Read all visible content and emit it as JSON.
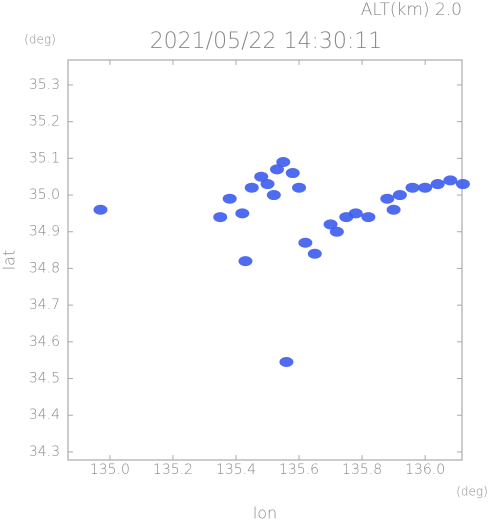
{
  "chart_data": {
    "type": "scatter",
    "title": "2021/05/22 14:30:11",
    "subtitle": "ALT(km) 2.0",
    "x_label": "lon",
    "y_label": "lat",
    "x_unit": "(deg)",
    "y_unit": "(deg)",
    "xlim": [
      134.867,
      136.117
    ],
    "ylim": [
      34.278,
      35.368
    ],
    "xticks": [
      {
        "value": 135,
        "label": "135.0"
      },
      135.2,
      135.4,
      135.6,
      135.8,
      {
        "value": 136,
        "label": "136.0"
      }
    ],
    "yticks": [
      34.3,
      34.4,
      34.5,
      34.6,
      34.7,
      34.8,
      34.9,
      {
        "value": 35,
        "label": "35.0"
      },
      35.1,
      35.2,
      35.3
    ],
    "color": "#3c5cf0",
    "x": [
      134.97,
      135.56,
      135.35,
      135.38,
      135.42,
      135.45,
      135.48,
      135.5,
      135.53,
      135.55,
      135.58,
      135.52,
      135.6,
      135.62,
      135.65,
      135.7,
      135.72,
      135.75,
      135.78,
      135.82,
      135.88,
      135.92,
      135.96,
      136.0,
      136.04,
      136.08,
      136.12,
      135.9,
      135.43
    ],
    "y": [
      34.96,
      34.545,
      34.94,
      34.99,
      34.95,
      35.02,
      35.05,
      35.03,
      35.07,
      35.09,
      35.06,
      35.0,
      35.02,
      34.87,
      34.84,
      34.92,
      34.9,
      34.94,
      34.95,
      34.94,
      34.99,
      35.0,
      35.02,
      35.02,
      35.03,
      35.04,
      35.03,
      34.96,
      34.82
    ]
  }
}
